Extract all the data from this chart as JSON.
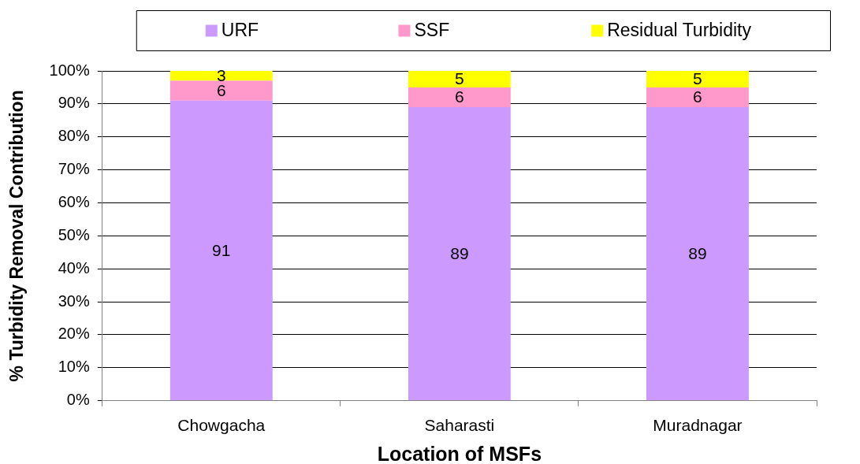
{
  "chart_data": {
    "type": "bar",
    "stacked": true,
    "xlabel": "Location of MSFs",
    "ylabel": "% Turbidity Removal Contribution",
    "categories": [
      "Chowgacha",
      "Saharasti",
      "Muradnagar"
    ],
    "series": [
      {
        "name": "URF",
        "color": "#cc99ff",
        "values": [
          91,
          89,
          89
        ]
      },
      {
        "name": "SSF",
        "color": "#ff99cc",
        "values": [
          6,
          6,
          6
        ]
      },
      {
        "name": "Residual Turbidity",
        "color": "#ffff00",
        "values": [
          3,
          5,
          5
        ]
      }
    ],
    "ylim": [
      0,
      100
    ],
    "yticks": [
      {
        "value": 0,
        "label": "0%"
      },
      {
        "value": 10,
        "label": "10%"
      },
      {
        "value": 20,
        "label": "20%"
      },
      {
        "value": 30,
        "label": "30%"
      },
      {
        "value": 40,
        "label": "40%"
      },
      {
        "value": 50,
        "label": "50%"
      },
      {
        "value": 60,
        "label": "60%"
      },
      {
        "value": 70,
        "label": "70%"
      },
      {
        "value": 80,
        "label": "80%"
      },
      {
        "value": 90,
        "label": "90%"
      },
      {
        "value": 100,
        "label": "100%"
      }
    ],
    "grid": "y",
    "legend": "top",
    "data_labels": true
  }
}
